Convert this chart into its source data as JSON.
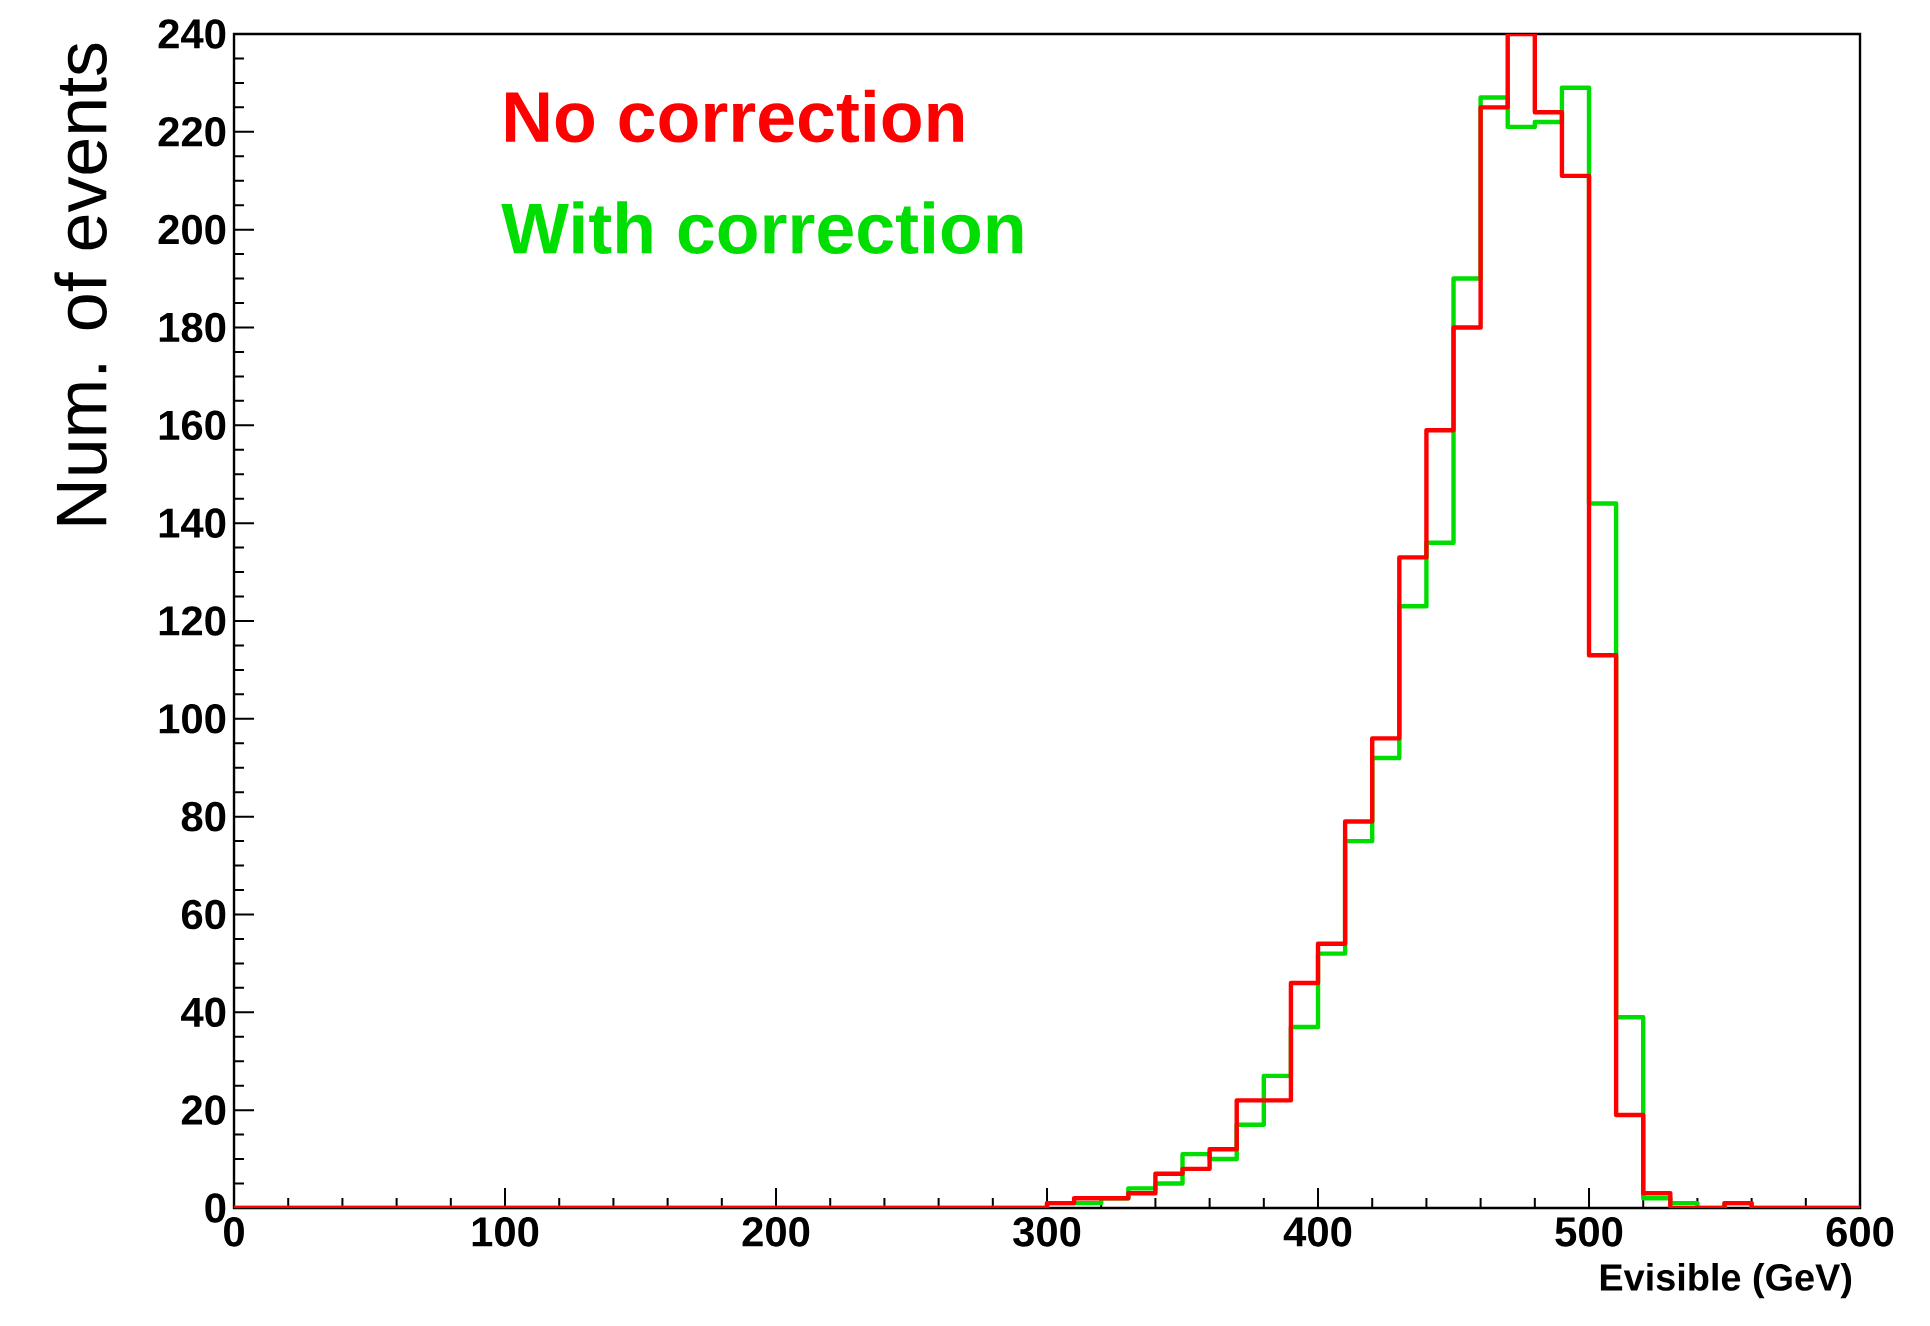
{
  "chart_data": {
    "type": "histogram",
    "xlabel": "Evisible (GeV)",
    "ylabel": "Num. of events",
    "bins": [
      0,
      10,
      20,
      30,
      40,
      50,
      60,
      70,
      80,
      90,
      100,
      110,
      120,
      130,
      140,
      150,
      160,
      170,
      180,
      190,
      200,
      210,
      220,
      230,
      240,
      250,
      260,
      270,
      280,
      290,
      300,
      310,
      320,
      330,
      340,
      350,
      360,
      370,
      380,
      390,
      400,
      410,
      420,
      430,
      440,
      450,
      460,
      470,
      480,
      490,
      500,
      510,
      520,
      530,
      540,
      550,
      560,
      570,
      580,
      590,
      600
    ],
    "series": [
      {
        "name": "No correction",
        "color": "#ff0000",
        "values": [
          0,
          0,
          0,
          0,
          0,
          0,
          0,
          0,
          0,
          0,
          0,
          0,
          0,
          0,
          0,
          0,
          0,
          0,
          0,
          0,
          0,
          0,
          0,
          0,
          0,
          0,
          0,
          0,
          0,
          0,
          1,
          2,
          2,
          3,
          7,
          8,
          12,
          22,
          22,
          46,
          54,
          79,
          96,
          133,
          159,
          180,
          225,
          240,
          224,
          211,
          113,
          19,
          3,
          0,
          0,
          1,
          0,
          0,
          0,
          0
        ]
      },
      {
        "name": "With correction",
        "color": "#00dd00",
        "values": [
          0,
          0,
          0,
          0,
          0,
          0,
          0,
          0,
          0,
          0,
          0,
          0,
          0,
          0,
          0,
          0,
          0,
          0,
          0,
          0,
          0,
          0,
          0,
          0,
          0,
          0,
          0,
          0,
          0,
          0,
          1,
          1,
          2,
          4,
          5,
          11,
          10,
          17,
          27,
          37,
          52,
          75,
          92,
          123,
          136,
          190,
          227,
          221,
          222,
          229,
          144,
          39,
          2,
          1,
          0,
          1,
          0,
          0,
          0,
          0
        ]
      }
    ],
    "xlim": [
      0,
      600
    ],
    "xticks": [
      0,
      100,
      200,
      300,
      400,
      500,
      600
    ],
    "ylim": [
      0,
      240
    ],
    "yticks": [
      0,
      20,
      40,
      60,
      80,
      100,
      120,
      140,
      160,
      180,
      200,
      220,
      240
    ],
    "legend": "top left",
    "grid": false
  }
}
